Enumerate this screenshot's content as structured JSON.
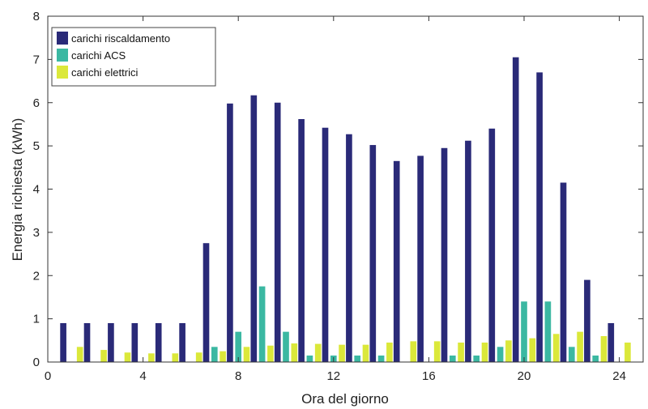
{
  "chart_data": {
    "type": "bar",
    "xlabel": "Ora del giorno",
    "ylabel": "Energia richiesta (kWh)",
    "xlim": [
      0,
      25
    ],
    "ylim": [
      0,
      8
    ],
    "xticks": [
      0,
      4,
      8,
      12,
      16,
      20,
      24
    ],
    "yticks": [
      0,
      1,
      2,
      3,
      4,
      5,
      6,
      7,
      8
    ],
    "grid": false,
    "legend_position": "top-left",
    "categories": [
      1,
      2,
      3,
      4,
      5,
      6,
      7,
      8,
      9,
      10,
      11,
      12,
      13,
      14,
      15,
      16,
      17,
      18,
      19,
      20,
      21,
      22,
      23,
      24
    ],
    "series": [
      {
        "name": "carichi riscaldamento",
        "color": "#2a2a78",
        "values": [
          0.9,
          0.9,
          0.9,
          0.9,
          0.9,
          0.9,
          2.75,
          5.98,
          6.17,
          6.0,
          5.62,
          5.42,
          5.27,
          5.02,
          4.65,
          4.77,
          4.95,
          5.12,
          5.4,
          7.05,
          6.7,
          4.15,
          1.9,
          0.9
        ]
      },
      {
        "name": "carichi ACS",
        "color": "#3bb8a2",
        "values": [
          0.0,
          0.0,
          0.0,
          0.0,
          0.0,
          0.0,
          0.35,
          0.7,
          1.75,
          0.7,
          0.15,
          0.15,
          0.15,
          0.15,
          0.0,
          0.0,
          0.15,
          0.15,
          0.35,
          1.4,
          1.4,
          0.35,
          0.15,
          0.0
        ]
      },
      {
        "name": "carichi elettrici",
        "color": "#dbe83a",
        "values": [
          0.35,
          0.28,
          0.22,
          0.2,
          0.2,
          0.22,
          0.25,
          0.35,
          0.38,
          0.43,
          0.42,
          0.4,
          0.4,
          0.45,
          0.48,
          0.48,
          0.45,
          0.45,
          0.5,
          0.55,
          0.65,
          0.7,
          0.6,
          0.45
        ]
      }
    ]
  }
}
